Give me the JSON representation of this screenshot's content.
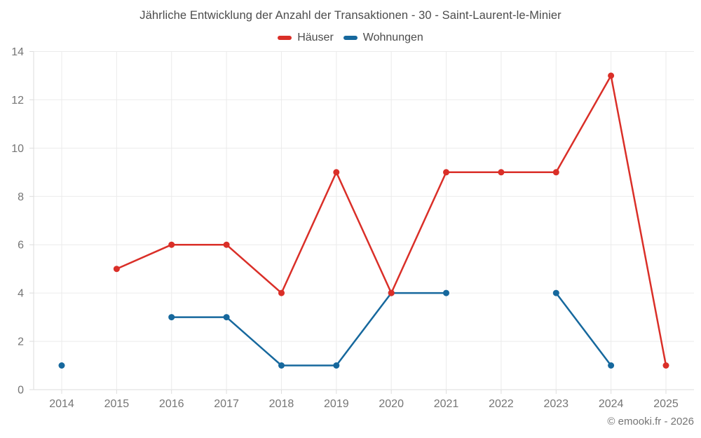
{
  "page": {
    "footer": "© emooki.fr - 2026"
  },
  "chart_data": {
    "type": "line",
    "title": "Jährliche Entwicklung der Anzahl der Transaktionen - 30 - Saint-Laurent-le-Minier",
    "xlabel": "",
    "ylabel": "",
    "categories": [
      "2014",
      "2015",
      "2016",
      "2017",
      "2018",
      "2019",
      "2020",
      "2021",
      "2022",
      "2023",
      "2024",
      "2025"
    ],
    "series": [
      {
        "name": "Häuser",
        "slug": "hauser",
        "color": "#da2f28",
        "values": [
          null,
          5,
          6,
          6,
          4,
          9,
          4,
          9,
          9,
          9,
          13,
          1
        ]
      },
      {
        "name": "Wohnungen",
        "slug": "wohnungen",
        "color": "#16689d",
        "values": [
          1,
          null,
          3,
          3,
          1,
          1,
          4,
          4,
          null,
          4,
          1,
          null
        ]
      }
    ],
    "ylim": [
      0,
      14
    ],
    "yticks": [
      0,
      2,
      4,
      6,
      8,
      10,
      12,
      14
    ],
    "grid": true,
    "legend_position": "top",
    "marker_radius": 4.5,
    "line_width": 2.5,
    "colors": {
      "grid": "#ebebeb",
      "axis": "#dddddd",
      "label": "#757575",
      "title": "#4c4c4c"
    }
  }
}
